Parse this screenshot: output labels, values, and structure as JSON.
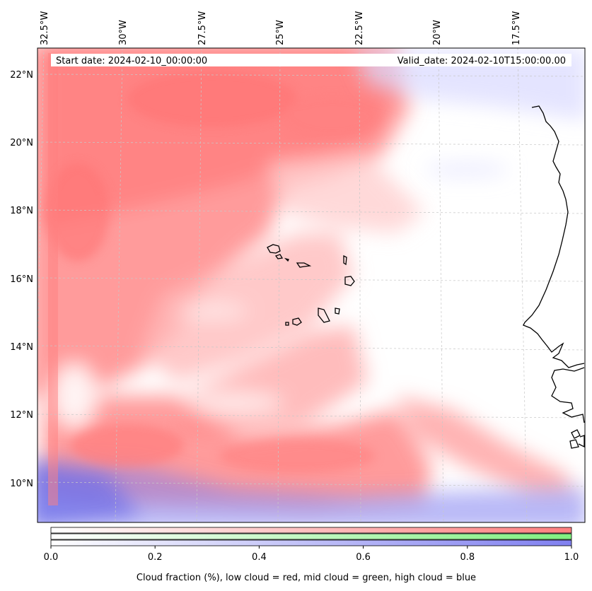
{
  "map": {
    "info": {
      "start_date": "Start date: 2024-02-10_00:00:00",
      "valid_date": "Valid_date: 2024-02-10T15:00:00.00"
    },
    "lon_labels": [
      "32.5°W",
      "30°W",
      "27.5°W",
      "25°W",
      "22.5°W",
      "20°W",
      "17.5°W"
    ],
    "lat_labels": [
      "22°N",
      "20°N",
      "18°N",
      "16°N",
      "14°N",
      "12°N",
      "10°N"
    ],
    "colors": {
      "low_cloud": "#ff7f7f",
      "mid_cloud": "#80f080",
      "high_cloud": "#8080f0",
      "coastline": "#000000",
      "gridline": "#c8c8c8"
    }
  },
  "colorbar": {
    "ticks": [
      "0.0",
      "0.2",
      "0.4",
      "0.6",
      "0.8",
      "1.0"
    ],
    "tick_values": [
      0.0,
      0.2,
      0.4,
      0.6,
      0.8,
      1.0
    ],
    "label": "Cloud fraction (%), low cloud = red, mid cloud = green, high cloud = blue",
    "range": [
      0,
      1
    ]
  }
}
